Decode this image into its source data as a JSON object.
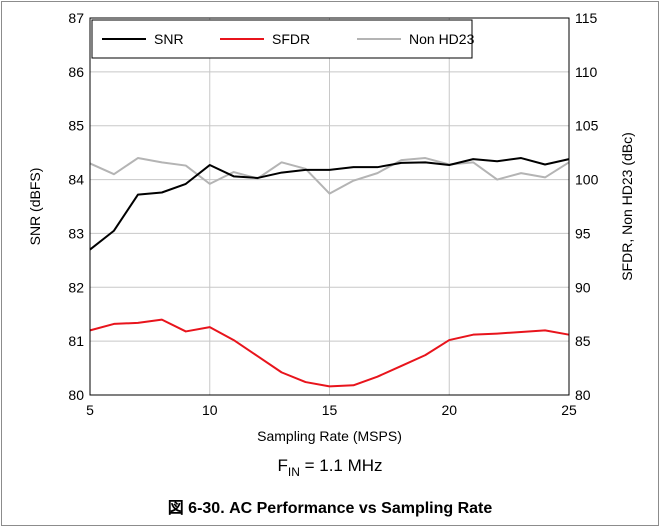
{
  "chart_data": {
    "type": "line",
    "xlabel": "Sampling Rate (MSPS)",
    "ylabel": "SNR (dBFS)",
    "y2label": "SFDR, Non HD23 (dBc)",
    "xlim": [
      5,
      25
    ],
    "ylim": [
      80,
      87
    ],
    "y2lim": [
      80,
      115
    ],
    "x_ticks": [
      "5",
      "10",
      "15",
      "20",
      "25"
    ],
    "y_ticks": [
      "80",
      "81",
      "82",
      "83",
      "84",
      "85",
      "86",
      "87"
    ],
    "y2_ticks": [
      "80",
      "85",
      "90",
      "95",
      "100",
      "105",
      "110",
      "115"
    ],
    "grid": true,
    "legend_position": "top-left",
    "x": [
      5,
      6,
      7,
      8,
      9,
      10,
      11,
      12,
      13,
      14,
      15,
      16,
      17,
      18,
      19,
      20,
      21,
      22,
      23,
      24,
      25
    ],
    "series": [
      {
        "name": "SNR",
        "axis": "left",
        "color": "#000000",
        "values": [
          82.7,
          83.05,
          83.72,
          83.76,
          83.92,
          84.27,
          84.06,
          84.03,
          84.13,
          84.18,
          84.18,
          84.23,
          84.23,
          84.31,
          84.32,
          84.27,
          84.38,
          84.34,
          84.4,
          84.28,
          84.38
        ]
      },
      {
        "name": "SFDR",
        "axis": "right",
        "color": "#e8141c",
        "values": [
          86.0,
          86.6,
          86.7,
          87.0,
          85.9,
          86.3,
          85.1,
          83.6,
          82.1,
          81.2,
          80.8,
          80.9,
          81.7,
          82.7,
          83.7,
          85.1,
          85.6,
          85.7,
          85.85,
          86.0,
          85.6
        ]
      },
      {
        "name": "Non HD23",
        "axis": "right",
        "color": "#b4b4b4",
        "values": [
          101.5,
          100.5,
          102.0,
          101.6,
          101.3,
          99.6,
          100.7,
          100.1,
          101.6,
          101.0,
          98.7,
          99.9,
          100.6,
          101.8,
          102.0,
          101.4,
          101.6,
          100.0,
          100.6,
          100.2,
          101.6
        ]
      }
    ],
    "annotation": {
      "main": "F",
      "sub": "IN",
      "rest": " = 1.1 MHz"
    },
    "caption": "図 6-30. AC Performance vs Sampling Rate"
  }
}
